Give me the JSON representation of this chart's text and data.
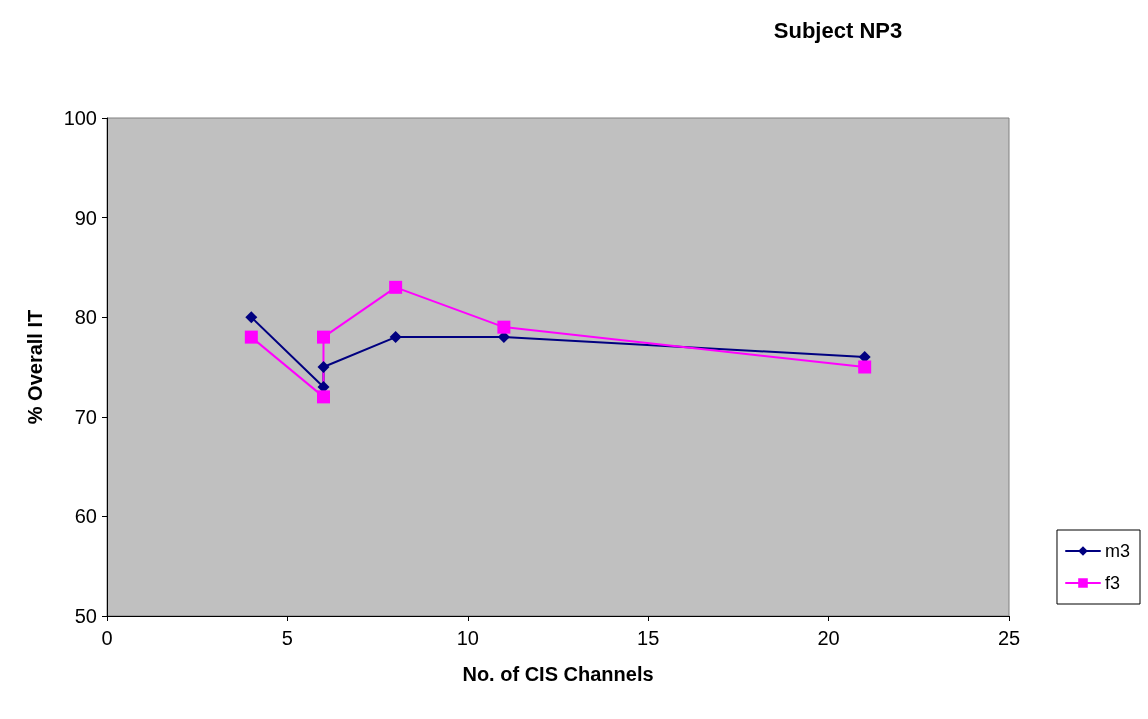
{
  "chart_data": {
    "type": "line",
    "title": "Subject NP3",
    "xlabel": "No. of CIS Channels",
    "ylabel": "% Overall IT",
    "xlim": [
      0,
      25
    ],
    "xticks": [
      0,
      5,
      10,
      15,
      20,
      25
    ],
    "ylim": [
      50,
      100
    ],
    "yticks": [
      50,
      60,
      70,
      80,
      90,
      100
    ],
    "grid": false,
    "legend": "right",
    "series": [
      {
        "name": "m3",
        "color": "#000080",
        "marker": "diamond",
        "x": [
          4,
          6,
          6,
          8,
          11,
          21
        ],
        "values": [
          80,
          73,
          75,
          78,
          78,
          76
        ]
      },
      {
        "name": "f3",
        "color": "#ff00ff",
        "marker": "square",
        "x": [
          4,
          6,
          6,
          8,
          11,
          21
        ],
        "values": [
          78,
          72,
          78,
          83,
          79,
          75
        ]
      }
    ]
  }
}
